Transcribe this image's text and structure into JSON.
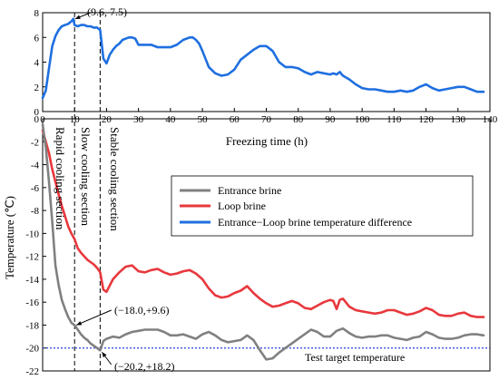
{
  "chart_data": {
    "type": "line",
    "xlabel": "Freezing time (h)",
    "ylabel": "Temperature (℃)",
    "x_ticks": [
      "0",
      "10",
      "20",
      "30",
      "40",
      "50",
      "60",
      "70",
      "80",
      "90",
      "100",
      "110",
      "120",
      "130",
      "140"
    ],
    "xlim": [
      0,
      140
    ],
    "top_panel": {
      "ylim": [
        0,
        8
      ],
      "y_ticks": [
        "0",
        "2",
        "4",
        "6",
        "8"
      ],
      "series": [
        {
          "name": "Entrance−Loop brine temperature difference",
          "color": "#1f6fe0",
          "x": [
            0,
            1,
            2,
            3,
            4,
            5,
            6,
            7,
            8,
            9,
            9.6,
            10,
            11,
            12,
            13,
            14,
            15,
            16,
            17,
            18,
            19,
            20,
            21,
            22,
            23,
            24,
            25,
            26,
            27,
            28,
            29,
            30,
            32,
            34,
            36,
            38,
            40,
            42,
            44,
            46,
            47,
            48,
            49,
            50,
            52,
            54,
            56,
            58,
            60,
            62,
            64,
            66,
            68,
            70,
            72,
            74,
            76,
            78,
            80,
            82,
            84,
            86,
            88,
            90,
            91,
            92,
            93,
            94,
            96,
            98,
            100,
            102,
            104,
            106,
            108,
            110,
            112,
            114,
            116,
            118,
            120,
            122,
            124,
            126,
            128,
            130,
            132,
            134,
            136,
            138
          ],
          "y": [
            1.1,
            1.7,
            3.5,
            5.3,
            6.1,
            6.6,
            6.9,
            7.0,
            7.1,
            7.3,
            7.5,
            7.0,
            6.9,
            7.0,
            7.0,
            6.9,
            6.9,
            6.8,
            6.8,
            6.6,
            4.3,
            3.9,
            4.6,
            5.0,
            5.3,
            5.5,
            5.8,
            5.9,
            6.0,
            6.0,
            5.9,
            5.4,
            5.4,
            5.4,
            5.2,
            5.2,
            5.2,
            5.4,
            5.8,
            6.0,
            6.0,
            5.8,
            5.5,
            4.9,
            3.6,
            3.1,
            2.9,
            3.0,
            3.4,
            4.2,
            4.6,
            5.0,
            5.3,
            5.3,
            4.9,
            4.0,
            3.6,
            3.6,
            3.5,
            3.2,
            3.0,
            3.2,
            3.1,
            3.0,
            3.1,
            3.0,
            3.2,
            2.9,
            2.6,
            2.2,
            1.9,
            1.8,
            1.8,
            1.7,
            1.6,
            1.6,
            1.7,
            1.6,
            1.7,
            2.0,
            2.2,
            1.9,
            1.7,
            1.8,
            1.9,
            2.0,
            2.0,
            1.8,
            1.6,
            1.6
          ]
        }
      ]
    },
    "bottom_panel": {
      "ylim": [
        -22,
        0
      ],
      "y_ticks": [
        "0",
        "-2",
        "-4",
        "-6",
        "-8",
        "-10",
        "-12",
        "-14",
        "-16",
        "-18",
        "-20",
        "-22"
      ],
      "series": [
        {
          "name": "Entrance brine",
          "color": "#808080",
          "x": [
            0,
            1,
            2,
            3,
            4,
            5,
            6,
            7,
            8,
            9,
            10,
            11,
            12,
            13,
            14,
            15,
            16,
            17,
            18,
            19,
            20,
            22,
            24,
            26,
            28,
            30,
            32,
            34,
            36,
            38,
            40,
            42,
            44,
            46,
            48,
            50,
            52,
            54,
            56,
            58,
            60,
            62,
            64,
            66,
            68,
            70,
            72,
            74,
            76,
            78,
            80,
            82,
            84,
            86,
            88,
            90,
            92,
            94,
            96,
            98,
            100,
            102,
            104,
            106,
            108,
            110,
            112,
            114,
            116,
            118,
            120,
            122,
            124,
            126,
            128,
            130,
            132,
            134,
            136,
            138
          ],
          "y": [
            -0.5,
            -2.5,
            -5.5,
            -9.0,
            -12.8,
            -14.5,
            -15.8,
            -16.6,
            -17.3,
            -17.8,
            -18.0,
            -18.4,
            -18.8,
            -19.1,
            -19.3,
            -19.6,
            -19.8,
            -20.0,
            -20.2,
            -19.4,
            -19.2,
            -19.0,
            -19.1,
            -18.8,
            -18.6,
            -18.5,
            -18.4,
            -18.4,
            -18.4,
            -18.6,
            -18.9,
            -18.9,
            -18.8,
            -19.0,
            -19.2,
            -18.8,
            -18.6,
            -18.9,
            -19.3,
            -19.5,
            -19.4,
            -19.3,
            -18.9,
            -19.3,
            -20.2,
            -21.0,
            -20.9,
            -20.4,
            -20.0,
            -19.6,
            -19.2,
            -18.8,
            -18.4,
            -18.6,
            -19.0,
            -19.0,
            -18.5,
            -18.3,
            -18.7,
            -19.0,
            -19.1,
            -19.0,
            -19.0,
            -18.9,
            -18.9,
            -19.1,
            -19.2,
            -19.3,
            -19.1,
            -19.0,
            -18.6,
            -18.8,
            -19.1,
            -19.2,
            -19.2,
            -19.1,
            -18.9,
            -18.8,
            -18.8,
            -18.9
          ]
        },
        {
          "name": "Loop brine",
          "color": "#e8383d",
          "x": [
            0,
            1,
            2,
            3,
            4,
            5,
            6,
            7,
            8,
            9,
            10,
            11,
            12,
            13,
            14,
            15,
            16,
            17,
            18,
            19,
            20,
            22,
            24,
            26,
            28,
            30,
            32,
            34,
            36,
            38,
            40,
            42,
            44,
            46,
            48,
            50,
            52,
            54,
            56,
            58,
            60,
            62,
            64,
            66,
            68,
            70,
            72,
            74,
            76,
            78,
            80,
            82,
            84,
            86,
            88,
            90,
            91,
            92,
            93,
            94,
            96,
            98,
            100,
            102,
            104,
            106,
            108,
            110,
            112,
            114,
            116,
            118,
            120,
            122,
            124,
            126,
            128,
            130,
            132,
            134,
            136,
            138
          ],
          "y": [
            -1.0,
            -2.0,
            -3.0,
            -4.4,
            -5.5,
            -6.6,
            -7.6,
            -8.5,
            -9.4,
            -10.0,
            -10.5,
            -11.3,
            -11.7,
            -12.0,
            -12.3,
            -12.5,
            -12.7,
            -13.0,
            -13.4,
            -14.9,
            -15.1,
            -14.0,
            -13.4,
            -12.9,
            -12.8,
            -13.3,
            -13.4,
            -13.2,
            -13.1,
            -13.4,
            -13.6,
            -13.5,
            -13.3,
            -13.2,
            -13.5,
            -14.0,
            -14.8,
            -15.4,
            -15.6,
            -15.5,
            -15.2,
            -15.0,
            -14.6,
            -15.2,
            -15.7,
            -16.1,
            -16.4,
            -16.3,
            -16.1,
            -15.9,
            -16.1,
            -16.5,
            -16.6,
            -16.3,
            -16.0,
            -15.8,
            -15.9,
            -16.6,
            -15.8,
            -15.7,
            -16.4,
            -16.7,
            -16.8,
            -16.9,
            -17.0,
            -16.9,
            -16.7,
            -16.7,
            -16.9,
            -17.1,
            -17.0,
            -16.8,
            -16.5,
            -16.7,
            -17.1,
            -17.2,
            -17.2,
            -17.0,
            -16.9,
            -17.2,
            -17.3,
            -17.3
          ]
        }
      ],
      "target_line": {
        "y": -20,
        "label": "Test target temperature",
        "color": "#2b40d6"
      }
    },
    "vertical_lines": [
      10,
      18
    ],
    "sections": [
      "Rapid cooling section",
      "Slow cooling section",
      "Stable cooling section"
    ],
    "annotations": {
      "peak": "(9.6, 7.5)",
      "point_a": "(−18.0,+9.6)",
      "point_b": "(−20.2,+18.2)"
    },
    "legend": {
      "placement": "center-right",
      "entries": [
        {
          "label": "Entrance brine",
          "color": "#808080"
        },
        {
          "label": "Loop brine",
          "color": "#e8383d"
        },
        {
          "label": "Entrance−Loop brine temperature difference",
          "color": "#1f6fe0"
        }
      ]
    }
  }
}
